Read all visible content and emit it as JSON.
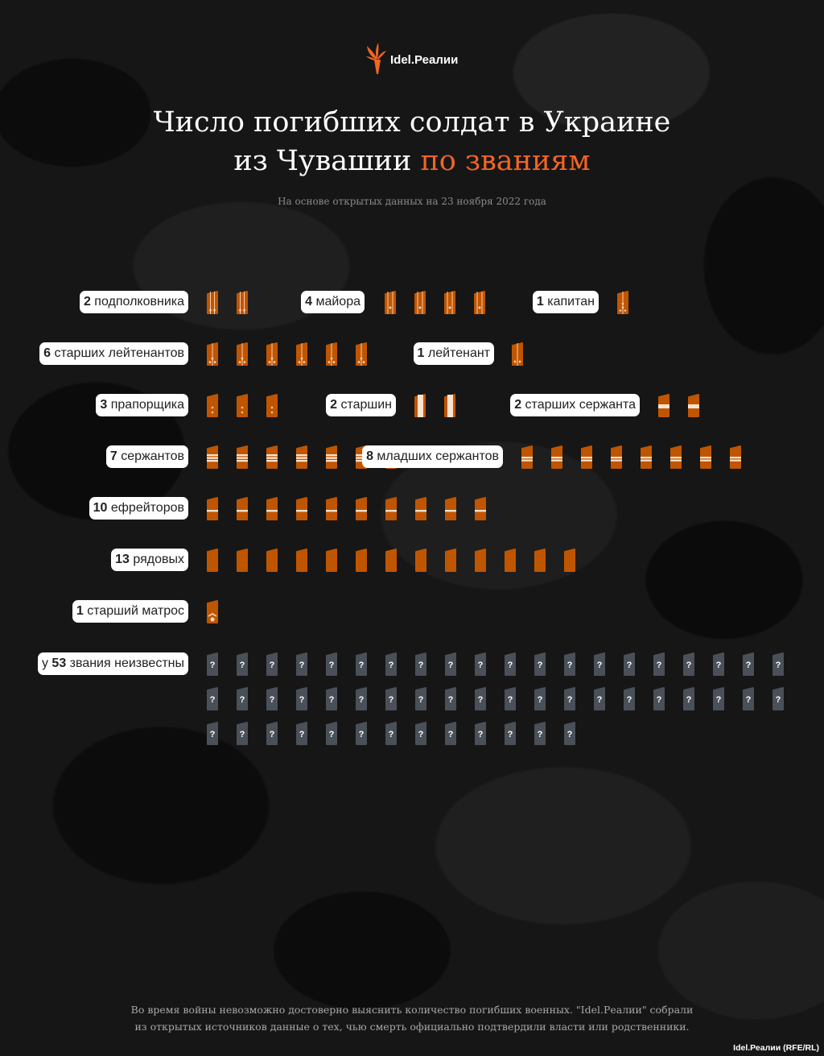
{
  "brand": {
    "logo_text": "Idel.Реалии",
    "logo_icon": "torch-icon",
    "credit": "Idel.Реалии (RFE/RL)"
  },
  "header": {
    "title_line1": "Число погибших солдат в Украине",
    "title_line2_plain": "из Чувашии ",
    "title_line2_accent": "по званиям",
    "subtitle": "На основе открытых данных на 23 ноября 2022 года"
  },
  "colors": {
    "accent": "#f26522",
    "insignia": "#c05500",
    "stripe": "#fbe3d0",
    "unknown": "#4a5058",
    "background": "#161616"
  },
  "chart_data": {
    "type": "pictogram",
    "title": "Число погибших солдат в Украине из Чувашии по званиям",
    "categories": [
      "подполковника",
      "майора",
      "капитан",
      "старших лейтенантов",
      "лейтенант",
      "прапорщика",
      "старшин",
      "старших сержанта",
      "сержантов",
      "младших сержантов",
      "ефрейторов",
      "рядовых",
      "старший матрос",
      "звания неизвестны"
    ],
    "values": [
      2,
      4,
      1,
      6,
      1,
      3,
      2,
      2,
      7,
      8,
      10,
      13,
      1,
      53
    ],
    "rows": [
      [
        {
          "prefix": "",
          "count": "2",
          "label": " подполковника",
          "n": 2,
          "icon": "lt-colonel"
        },
        {
          "prefix": "",
          "count": "4",
          "label": " майора",
          "n": 4,
          "icon": "major"
        },
        {
          "prefix": "",
          "count": "1",
          "label": " капитан",
          "n": 1,
          "icon": "captain"
        }
      ],
      [
        {
          "prefix": "",
          "count": "6",
          "label": " старших лейтенантов",
          "n": 6,
          "icon": "senior-lieutenant"
        },
        {
          "prefix": "",
          "count": "1",
          "label": " лейтенант",
          "n": 1,
          "icon": "lieutenant"
        }
      ],
      [
        {
          "prefix": "",
          "count": "3",
          "label": " прапорщика",
          "n": 3,
          "icon": "praporshchik"
        },
        {
          "prefix": "",
          "count": "2",
          "label": " старшин",
          "n": 2,
          "icon": "starshina"
        },
        {
          "prefix": "",
          "count": "2",
          "label": " старших сержанта",
          "n": 2,
          "icon": "senior-sergeant"
        }
      ],
      [
        {
          "prefix": "",
          "count": "7",
          "label": " сержантов",
          "n": 7,
          "icon": "sergeant"
        },
        {
          "prefix": "",
          "count": "8",
          "label": " младших сержантов",
          "n": 8,
          "icon": "junior-sergeant"
        }
      ],
      [
        {
          "prefix": "",
          "count": "10",
          "label": " ефрейторов",
          "n": 10,
          "icon": "efreitor"
        }
      ],
      [
        {
          "prefix": "",
          "count": "13",
          "label": " рядовых",
          "n": 13,
          "icon": "private"
        }
      ],
      [
        {
          "prefix": "",
          "count": "1",
          "label": " старший матрос",
          "n": 1,
          "icon": "senior-sailor"
        }
      ],
      [
        {
          "prefix": "у ",
          "count": "53",
          "label": " звания неизвестны",
          "n": 53,
          "icon": "unknown",
          "symbol": "?"
        }
      ]
    ]
  },
  "footer": {
    "line1": "Во время войны невозможно достоверно выяснить количество погибших военных. \"Idel.Реалии\" собрали",
    "line2": "из открытых источников данные о тех, чью смерть официально подтвердили власти или родственники."
  }
}
